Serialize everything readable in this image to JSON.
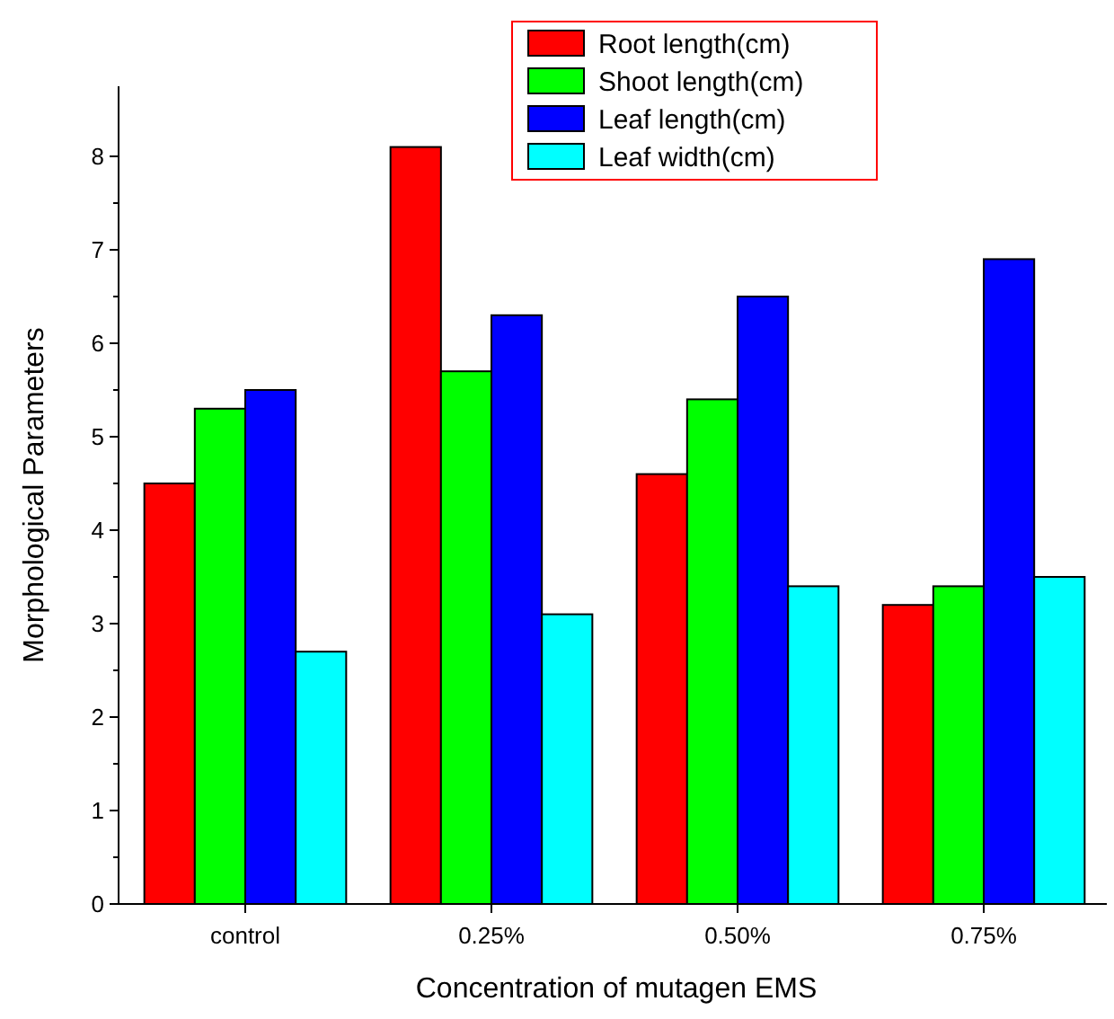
{
  "chart_data": {
    "type": "bar",
    "xlabel": "Concentration of mutagen EMS",
    "ylabel": "Morphological Parameters",
    "categories": [
      "control",
      "0.25%",
      "0.50%",
      "0.75%"
    ],
    "series": [
      {
        "name": "Root length(cm)",
        "color": "#ff0000",
        "values": [
          4.5,
          8.1,
          4.6,
          3.2
        ]
      },
      {
        "name": "Shoot length(cm)",
        "color": "#00ff00",
        "values": [
          5.3,
          5.7,
          5.4,
          3.4
        ]
      },
      {
        "name": "Leaf length(cm)",
        "color": "#0000ff",
        "values": [
          5.5,
          6.3,
          6.5,
          6.9
        ]
      },
      {
        "name": "Leaf width(cm)",
        "color": "#00ffff",
        "values": [
          2.7,
          3.1,
          3.4,
          3.5
        ]
      }
    ],
    "ylim": [
      0,
      8.75
    ],
    "yticks": [
      0,
      1,
      2,
      3,
      4,
      5,
      6,
      7,
      8
    ],
    "grid": false,
    "legend": "top right"
  }
}
